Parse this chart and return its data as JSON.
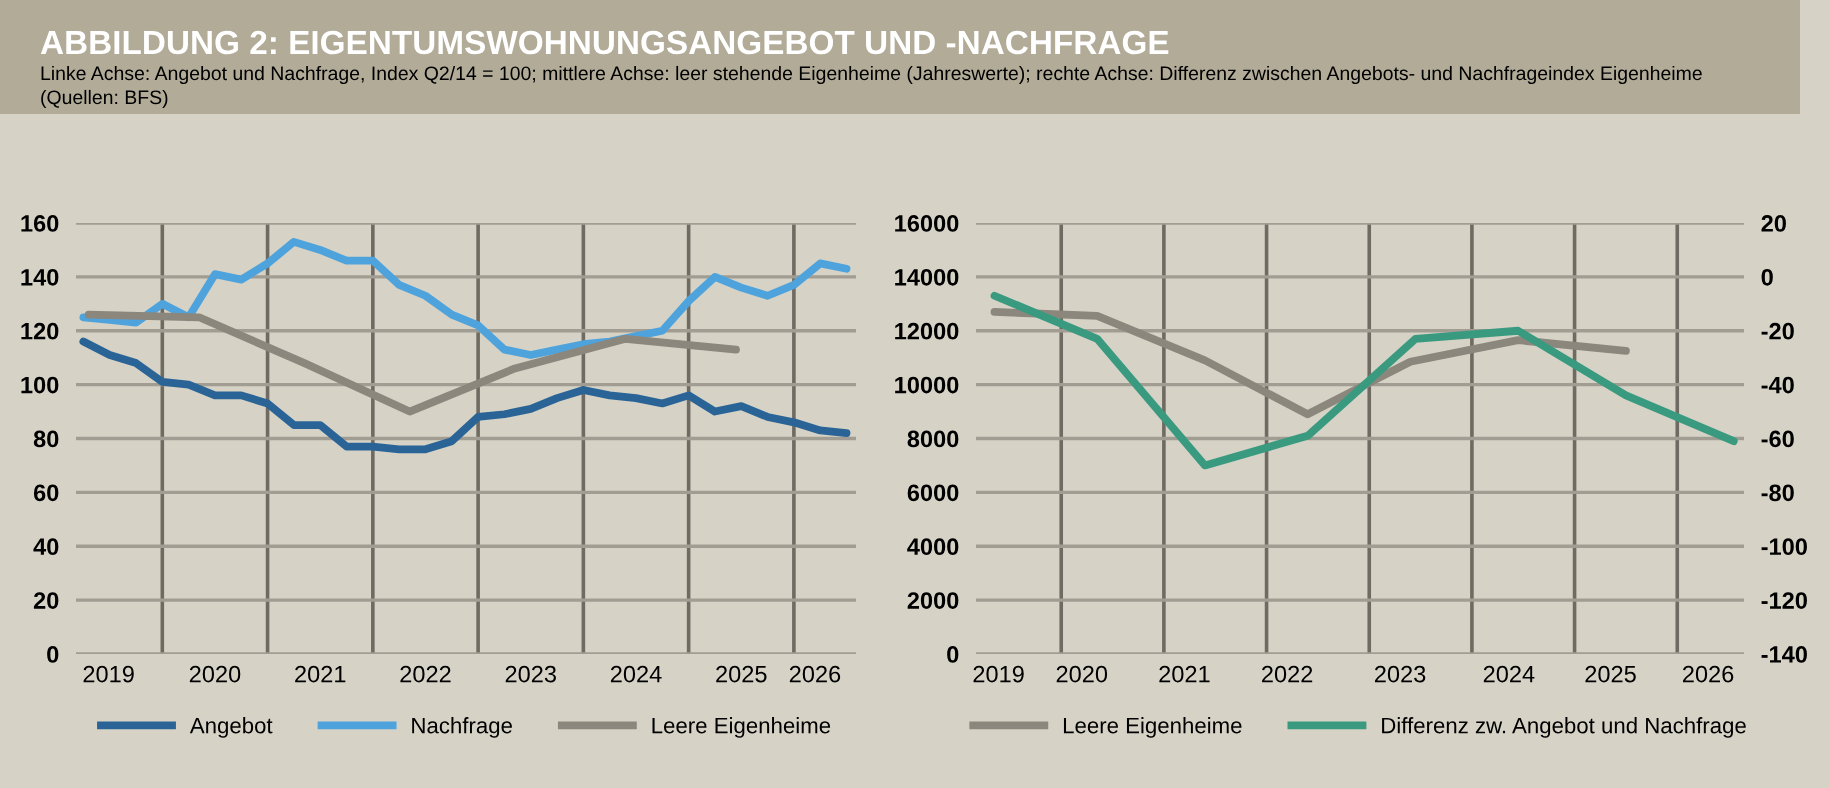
{
  "chart_data": [
    {
      "type": "line",
      "title": "ABBILDUNG 2: EIGENTUMSWOHNUNGSANGEBOT UND -NACHFRAGE",
      "subtitle": "Linke Achse: Angebot und Nachfrage, Index Q2/14 = 100; mittlere Achse: leer stehende Eigenheime (Jahreswerte); rechte Achse: Differenz zwischen Angebots- und Nachfrageindex Eigenheime",
      "annotations": [
        "(Quellen: BFS)"
      ],
      "xlim": [
        2019.18,
        2026.59
      ],
      "xticks": [
        {
          "value": 2019.49,
          "label": "2019"
        },
        {
          "value": 2020,
          "label": null
        },
        {
          "value": 2020.5,
          "label": "2020"
        },
        {
          "value": 2021,
          "label": null
        },
        {
          "value": 2021.5,
          "label": "2021"
        },
        {
          "value": 2022,
          "label": null
        },
        {
          "value": 2022.5,
          "label": "2022"
        },
        {
          "value": 2023,
          "label": null
        },
        {
          "value": 2023.5,
          "label": "2023"
        },
        {
          "value": 2024,
          "label": null
        },
        {
          "value": 2024.5,
          "label": "2024"
        },
        {
          "value": 2025,
          "label": null
        },
        {
          "value": 2025.5,
          "label": "2025"
        },
        {
          "value": 2026,
          "label": null
        },
        {
          "value": 2026.2,
          "label": "2026"
        }
      ],
      "ylim": [
        0,
        160
      ],
      "yticks": [
        0,
        20,
        40,
        60,
        80,
        100,
        120,
        140,
        160
      ],
      "grid": true,
      "legend": "bottom",
      "marker": "none",
      "line_style": "solid",
      "x": [
        2019.25,
        2019.5,
        2019.75,
        2020.0,
        2020.25,
        2020.5,
        2020.75,
        2021.0,
        2021.25,
        2021.5,
        2021.75,
        2022.0,
        2022.25,
        2022.5,
        2022.75,
        2023.0,
        2023.25,
        2023.5,
        2023.75,
        2024.0,
        2024.25,
        2024.5,
        2024.75,
        2025.0,
        2025.25,
        2025.5,
        2025.75,
        2026.0,
        2026.25,
        2026.5
      ],
      "series": [
        {
          "name": "Angebot",
          "color": "#2a6496",
          "values": [
            116,
            111,
            108,
            101,
            100,
            96,
            96,
            93,
            85,
            85,
            77,
            77,
            76,
            76,
            79,
            88,
            89,
            91,
            95,
            98,
            96,
            95,
            93,
            96,
            90,
            92,
            88,
            86,
            83,
            82
          ]
        },
        {
          "name": "Nachfrage",
          "color": "#4fa3dc",
          "values": [
            125,
            124,
            123,
            130,
            125,
            141,
            139,
            145,
            153,
            150,
            146,
            146,
            137,
            133,
            126,
            122,
            113,
            111,
            113,
            115,
            116,
            118,
            120,
            131,
            140,
            136,
            133,
            137,
            145,
            143
          ]
        },
        {
          "name": "Leere Eigenheime",
          "color": "#8c877c",
          "x": [
            2019.3,
            2020.35,
            2021.35,
            2022.35,
            2023.35,
            2024.4,
            2025.45
          ],
          "values": [
            126,
            125,
            108,
            90,
            106,
            117,
            113
          ]
        }
      ]
    },
    {
      "type": "line",
      "xlim": [
        2019.17,
        2026.65
      ],
      "xticks": [
        {
          "value": 2019.39,
          "label": "2019"
        },
        {
          "value": 2020,
          "label": null
        },
        {
          "value": 2020.2,
          "label": "2020"
        },
        {
          "value": 2021,
          "label": null
        },
        {
          "value": 2021.2,
          "label": "2021"
        },
        {
          "value": 2022,
          "label": null
        },
        {
          "value": 2022.2,
          "label": "2022"
        },
        {
          "value": 2023,
          "label": null
        },
        {
          "value": 2023.3,
          "label": "2023"
        },
        {
          "value": 2024,
          "label": null
        },
        {
          "value": 2024.36,
          "label": "2024"
        },
        {
          "value": 2025,
          "label": null
        },
        {
          "value": 2025.35,
          "label": "2025"
        },
        {
          "value": 2026,
          "label": null
        },
        {
          "value": 2026.3,
          "label": "2026"
        }
      ],
      "ylim": [
        0,
        16000
      ],
      "yticks": [
        0,
        2000,
        4000,
        6000,
        8000,
        10000,
        12000,
        14000,
        16000
      ],
      "y2lim": [
        -140,
        20
      ],
      "y2ticks": [
        -140,
        -120,
        -100,
        -80,
        -60,
        -40,
        -20,
        0,
        20
      ],
      "grid": true,
      "legend": "bottom",
      "marker": "none",
      "line_style": "solid",
      "series": [
        {
          "name": "Leere Eigenheime",
          "color": "#8c877c",
          "x": [
            2019.35,
            2020.35,
            2021.4,
            2022.4,
            2023.4,
            2024.45,
            2025.5
          ],
          "values": [
            12700,
            12550,
            10900,
            8900,
            10850,
            11650,
            11250
          ]
        },
        {
          "name": "Differenz zw. Angebot und Nachfrage",
          "color": "#3a9a80",
          "axis": "y2",
          "x": [
            2019.35,
            2020.35,
            2021.4,
            2022.4,
            2023.45,
            2024.45,
            2025.5,
            2026.55
          ],
          "values": [
            -7,
            -23,
            -70,
            -59,
            -23,
            -20,
            -44,
            -61
          ]
        }
      ]
    }
  ]
}
